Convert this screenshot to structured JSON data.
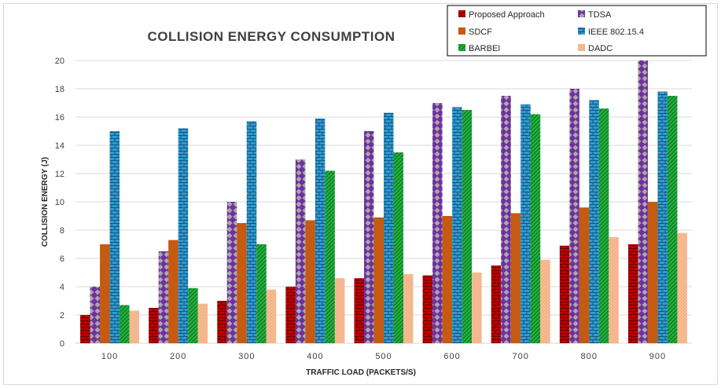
{
  "chart_data": {
    "type": "bar",
    "title": "COLLISION ENERGY CONSUMPTION",
    "xlabel": "TRAFFIC LOAD (PACKETS/S)",
    "ylabel": "COLLISION ENERGY (J)",
    "categories": [
      "100",
      "200",
      "300",
      "400",
      "500",
      "600",
      "700",
      "800",
      "900"
    ],
    "ylim": [
      0,
      20
    ],
    "yticks": [
      "0",
      "2",
      "4",
      "6",
      "8",
      "10",
      "12",
      "14",
      "16",
      "18",
      "20"
    ],
    "grid": true,
    "legend_position": "top-right",
    "series": [
      {
        "name": "Proposed Approach",
        "color": "#c00000",
        "pattern": "bricks",
        "values": [
          2.0,
          2.5,
          3.0,
          4.0,
          4.6,
          4.8,
          5.5,
          6.9,
          7.0
        ]
      },
      {
        "name": "TDSA",
        "color": "#7030a0",
        "pattern": "diamonds",
        "values": [
          4.0,
          6.5,
          10.0,
          13.0,
          15.0,
          17.0,
          17.5,
          18.0,
          20.0
        ]
      },
      {
        "name": "SDCF",
        "color": "#c55a11",
        "pattern": "solid",
        "values": [
          7.0,
          7.3,
          8.5,
          8.7,
          8.9,
          9.0,
          9.2,
          9.6,
          10.0
        ]
      },
      {
        "name": "IEEE 802.15.4",
        "color": "#2e9bd6",
        "pattern": "bricks",
        "values": [
          15.0,
          15.2,
          15.7,
          15.9,
          16.3,
          16.7,
          16.9,
          17.2,
          17.8
        ]
      },
      {
        "name": "BARBEI",
        "color": "#1fb53c",
        "pattern": "stripes",
        "values": [
          2.7,
          3.9,
          7.0,
          12.2,
          13.5,
          16.5,
          16.2,
          16.6,
          17.5
        ]
      },
      {
        "name": "DADC",
        "color": "#f4b183",
        "pattern": "dots",
        "values": [
          2.3,
          2.8,
          3.8,
          4.6,
          4.9,
          5.0,
          5.9,
          7.5,
          7.8
        ]
      }
    ]
  }
}
